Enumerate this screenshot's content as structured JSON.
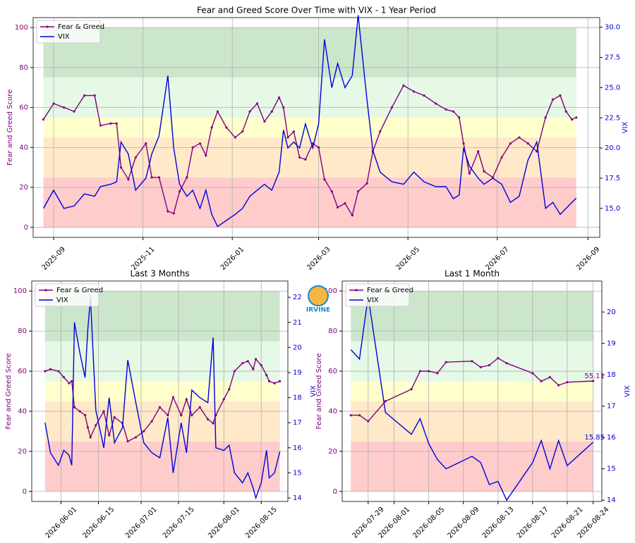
{
  "logo": "IRVINE",
  "chart_data": [
    {
      "type": "line",
      "title": "Fear and Greed Score Over Time with VIX - 1 Year Period",
      "ylabel": "Fear and Greed Score",
      "y2label": "VIX",
      "grid": true,
      "legend": "upper left",
      "label_last": false,
      "xlim": [
        "2025-08-18",
        "2026-09-09"
      ],
      "xticks": [
        "2025-09",
        "2025-11",
        "2026-01",
        "2026-03",
        "2026-05",
        "2026-07",
        "2026-09"
      ],
      "ylim": [
        -5,
        105
      ],
      "yticks": [
        0,
        20,
        40,
        60,
        80,
        100
      ],
      "y2lim": [
        12.6,
        30.8
      ],
      "y2ticks": [
        {
          "value": 15,
          "label": "15.0"
        },
        {
          "value": 17.5,
          "label": "17.5"
        },
        {
          "value": 20,
          "label": "20.0"
        },
        {
          "value": 22.5,
          "label": "22.5"
        },
        {
          "value": 25,
          "label": "25.0"
        },
        {
          "value": 27.5,
          "label": "27.5"
        },
        {
          "value": 30,
          "label": "30.0"
        }
      ],
      "zones": [
        {
          "from": 0,
          "to": 25,
          "color": "#ffcccc"
        },
        {
          "from": 25,
          "to": 45,
          "color": "#ffe9c9"
        },
        {
          "from": 45,
          "to": 55,
          "color": "#ffffcc"
        },
        {
          "from": 55,
          "to": 75,
          "color": "#e6f8e6"
        },
        {
          "from": 75,
          "to": 100,
          "color": "#cce6cc"
        }
      ],
      "x": [
        "2025-08-25",
        "2025-09-01",
        "2025-09-08",
        "2025-09-15",
        "2025-09-22",
        "2025-09-29",
        "2025-10-03",
        "2025-10-10",
        "2025-10-14",
        "2025-10-17",
        "2025-10-22",
        "2025-10-27",
        "2025-11-03",
        "2025-11-07",
        "2025-11-12",
        "2025-11-18",
        "2025-11-22",
        "2025-11-26",
        "2025-12-01",
        "2025-12-05",
        "2025-12-10",
        "2025-12-14",
        "2025-12-18",
        "2025-12-22",
        "2025-12-28",
        "2026-01-03",
        "2026-01-08",
        "2026-01-13",
        "2026-01-18",
        "2026-01-23",
        "2026-01-28",
        "2026-02-02",
        "2026-02-05",
        "2026-02-08",
        "2026-02-12",
        "2026-02-16",
        "2026-02-20",
        "2026-02-25",
        "2026-03-01",
        "2026-03-05",
        "2026-03-10",
        "2026-03-14",
        "2026-03-19",
        "2026-03-24",
        "2026-03-28",
        "2026-04-03",
        "2026-04-07",
        "2026-04-12",
        "2026-04-20",
        "2026-04-28",
        "2026-05-05",
        "2026-05-12",
        "2026-05-20",
        "2026-05-27",
        "2026-06-01",
        "2026-06-05",
        "2026-06-08",
        "2026-06-12",
        "2026-06-18",
        "2026-06-22",
        "2026-06-28",
        "2026-07-04",
        "2026-07-10",
        "2026-07-16",
        "2026-07-22",
        "2026-07-28",
        "2026-08-03",
        "2026-08-08",
        "2026-08-13",
        "2026-08-17",
        "2026-08-21",
        "2026-08-24"
      ],
      "series": [
        {
          "name": "Fear & Greed",
          "color": "#800080",
          "marker": true,
          "values": [
            54,
            62,
            60,
            58,
            66,
            66,
            51,
            52,
            52,
            30,
            24,
            35,
            42,
            25,
            25,
            8,
            7,
            18,
            25,
            40,
            42,
            36,
            50,
            58,
            50,
            45,
            48,
            58,
            62,
            53,
            58,
            65,
            60,
            45,
            48,
            35,
            34,
            42,
            40,
            24,
            18,
            10,
            12,
            6,
            18,
            22,
            38,
            48,
            60,
            71,
            68,
            66,
            62,
            59,
            58,
            55,
            42,
            27,
            38,
            28,
            25,
            35,
            42,
            45,
            42,
            38,
            55,
            64,
            66,
            58,
            54,
            55
          ]
        },
        {
          "name": "VIX",
          "color": "#0000dd",
          "axis": "y2",
          "values": [
            15,
            16.5,
            15,
            15.2,
            16.2,
            16,
            16.8,
            17,
            17.2,
            20.5,
            19.5,
            16.5,
            17.5,
            19.5,
            21,
            26,
            20,
            17,
            16,
            16.5,
            15,
            16.5,
            14.5,
            13.5,
            14,
            14.5,
            15,
            16,
            16.5,
            17,
            16.5,
            18,
            21.5,
            20,
            20.5,
            20,
            22,
            20,
            22,
            29,
            25,
            27,
            25,
            26,
            31,
            24,
            19.8,
            18,
            17.2,
            17,
            18,
            17.2,
            16.8,
            16.8,
            15.8,
            16.1,
            20,
            18.5,
            17.5,
            17,
            17.5,
            17,
            15.5,
            16,
            19,
            20.5,
            15,
            15.5,
            14.5,
            15,
            15.5,
            15.85
          ]
        }
      ]
    },
    {
      "type": "line",
      "title": "Last 3 Months",
      "ylabel": "Fear and Greed Score",
      "y2label": "VIX",
      "grid": true,
      "legend": "upper left",
      "label_last": false,
      "xlim": [
        "2026-05-21",
        "2026-08-25"
      ],
      "xticks": [
        "2026-06-01",
        "2026-06-15",
        "2026-07-01",
        "2026-07-15",
        "2026-08-01",
        "2026-08-15"
      ],
      "ylim": [
        -5,
        105
      ],
      "yticks": [
        0,
        20,
        40,
        60,
        80,
        100
      ],
      "y2lim": [
        13.86,
        22.65
      ],
      "y2ticks": [
        14,
        15,
        16,
        17,
        18,
        19,
        20,
        21,
        22
      ],
      "zones": [
        {
          "from": 0,
          "to": 25,
          "color": "#ffcccc"
        },
        {
          "from": 25,
          "to": 45,
          "color": "#ffe9c9"
        },
        {
          "from": 45,
          "to": 55,
          "color": "#ffffcc"
        },
        {
          "from": 55,
          "to": 75,
          "color": "#e6f8e6"
        },
        {
          "from": 75,
          "to": 100,
          "color": "#cce6cc"
        }
      ],
      "x": [
        "2026-05-26",
        "2026-05-28",
        "2026-05-31",
        "2026-06-02",
        "2026-06-04",
        "2026-06-05",
        "2026-06-06",
        "2026-06-08",
        "2026-06-10",
        "2026-06-11",
        "2026-06-12",
        "2026-06-14",
        "2026-06-17",
        "2026-06-19",
        "2026-06-21",
        "2026-06-24",
        "2026-06-26",
        "2026-06-29",
        "2026-07-02",
        "2026-07-05",
        "2026-07-08",
        "2026-07-11",
        "2026-07-13",
        "2026-07-16",
        "2026-07-18",
        "2026-07-20",
        "2026-07-23",
        "2026-07-26",
        "2026-07-28",
        "2026-07-29",
        "2026-08-01",
        "2026-08-03",
        "2026-08-05",
        "2026-08-08",
        "2026-08-10",
        "2026-08-12",
        "2026-08-13",
        "2026-08-15",
        "2026-08-17",
        "2026-08-18",
        "2026-08-20",
        "2026-08-22"
      ],
      "series": [
        {
          "name": "Fear & Greed",
          "color": "#800080",
          "marker": true,
          "values": [
            60,
            61,
            60,
            57,
            54,
            55,
            42,
            40,
            38,
            32,
            27,
            33,
            40,
            28,
            37,
            34,
            25,
            27,
            30,
            35,
            42,
            38,
            47,
            38,
            46,
            38,
            42,
            36,
            34,
            38,
            46,
            51,
            60,
            64,
            65,
            61,
            66,
            63,
            58,
            55,
            54,
            55
          ]
        },
        {
          "name": "VIX",
          "color": "#0000dd",
          "axis": "y2",
          "values": [
            17,
            15.8,
            15.3,
            15.9,
            15.7,
            15.3,
            21,
            19.8,
            18.8,
            20.7,
            22,
            17.5,
            16,
            18,
            16.2,
            16.8,
            19.5,
            17.8,
            16.2,
            15.8,
            15.6,
            17.2,
            15,
            17,
            15.8,
            18.3,
            18,
            17.8,
            20.4,
            16,
            15.9,
            16.1,
            15,
            14.6,
            15,
            14.4,
            14,
            14.6,
            15.9,
            14.8,
            15,
            15.85
          ]
        }
      ]
    },
    {
      "type": "line",
      "title": "Last 1 Month",
      "ylabel": "Fear and Greed Score",
      "y2label": "VIX",
      "grid": true,
      "legend": "upper left",
      "label_last": true,
      "xlim": [
        "2026-07-26",
        "2026-08-25"
      ],
      "xticks": [
        "2026-07-29",
        "2026-08-01",
        "2026-08-05",
        "2026-08-09",
        "2026-08-13",
        "2026-08-17",
        "2026-08-21",
        "2026-08-24"
      ],
      "ylim": [
        -5,
        105
      ],
      "yticks": [
        0,
        20,
        40,
        60,
        80,
        100
      ],
      "y2lim": [
        13.96,
        20.99
      ],
      "y2ticks": [
        14,
        15,
        16,
        17,
        18,
        19,
        20
      ],
      "zones": [
        {
          "from": 0,
          "to": 25,
          "color": "#ffcccc"
        },
        {
          "from": 25,
          "to": 45,
          "color": "#ffe9c9"
        },
        {
          "from": 45,
          "to": 55,
          "color": "#ffffcc"
        },
        {
          "from": 55,
          "to": 75,
          "color": "#e6f8e6"
        },
        {
          "from": 75,
          "to": 100,
          "color": "#cce6cc"
        }
      ],
      "x": [
        "2026-07-27",
        "2026-07-28",
        "2026-07-29",
        "2026-07-31",
        "2026-08-03",
        "2026-08-04",
        "2026-08-05",
        "2026-08-06",
        "2026-08-07",
        "2026-08-10",
        "2026-08-11",
        "2026-08-12",
        "2026-08-13",
        "2026-08-14",
        "2026-08-17",
        "2026-08-18",
        "2026-08-19",
        "2026-08-20",
        "2026-08-21",
        "2026-08-24"
      ],
      "series": [
        {
          "name": "Fear & Greed",
          "color": "#800080",
          "marker": true,
          "values": [
            38,
            38,
            35,
            45,
            51,
            60,
            60,
            59,
            64.5,
            65,
            62,
            63,
            66.5,
            64,
            59,
            55,
            57,
            53,
            54.5,
            55.11
          ]
        },
        {
          "name": "VIX",
          "color": "#0000dd",
          "axis": "y2",
          "values": [
            18.8,
            18.5,
            20.5,
            16.8,
            16.1,
            16.6,
            15.8,
            15.3,
            15,
            15.4,
            15.2,
            14.5,
            14.6,
            14,
            15.2,
            15.9,
            15,
            15.9,
            15.1,
            15.85
          ]
        }
      ]
    }
  ]
}
